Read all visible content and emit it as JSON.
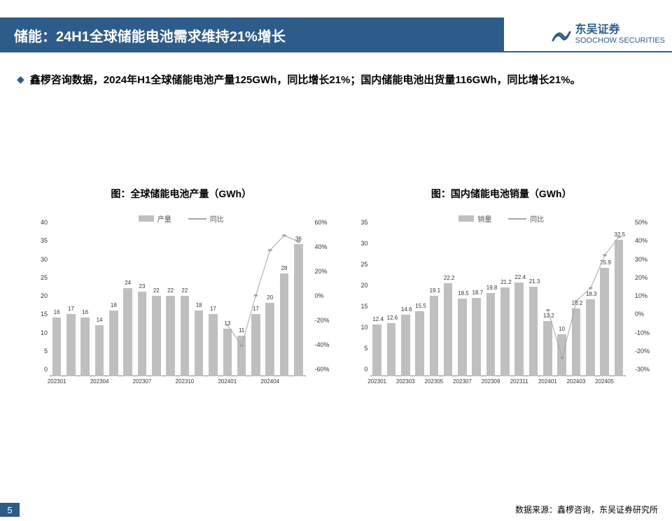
{
  "header": {
    "title": "储能：24H1全球储能电池需求维持21%增长"
  },
  "logo": {
    "cn": "东吴证券",
    "en": "SOOCHOW SECURITIES"
  },
  "bullet": "鑫椤咨询数据，2024年H1全球储能电池产量125GWh，同比增长21%；国内储能电池出货量116GWh，同比增长21%。",
  "chart1": {
    "title": "图：全球储能电池产量（GWh）",
    "legend_bar": "产量",
    "legend_line": "同比",
    "y_left": {
      "min": 0,
      "max": 40,
      "step": 5
    },
    "y_right": {
      "min": -60,
      "max": 60,
      "step": 20,
      "suffix": "%"
    },
    "x_labels": [
      "202301",
      "202304",
      "202307",
      "202310",
      "202401",
      "202404"
    ],
    "x_label_idx": [
      0,
      3,
      6,
      9,
      12,
      15
    ],
    "bars": [
      16,
      17,
      16,
      14,
      18,
      24,
      23,
      22,
      22,
      22,
      18,
      17,
      13,
      11,
      17,
      20,
      28,
      36
    ],
    "line": [
      null,
      null,
      null,
      null,
      null,
      null,
      null,
      null,
      null,
      null,
      null,
      null,
      -18,
      -35,
      6,
      43,
      55,
      50
    ],
    "bar_color": "#bfbfbf",
    "line_color": "#a6a6a6",
    "bar_width": 0.62
  },
  "chart2": {
    "title": "图：国内储能电池销量（GWh）",
    "legend_bar": "销量",
    "legend_line": "同比",
    "y_left": {
      "min": 0,
      "max": 35,
      "step": 5
    },
    "y_right": {
      "min": -30,
      "max": 50,
      "step": 10,
      "suffix": "%"
    },
    "x_labels": [
      "202301",
      "202303",
      "202305",
      "202307",
      "202309",
      "202311",
      "202401",
      "202403",
      "202405"
    ],
    "x_label_idx": [
      0,
      2,
      4,
      6,
      8,
      10,
      12,
      14,
      16
    ],
    "bars": [
      12.4,
      12.6,
      14.6,
      15.5,
      19.1,
      22.2,
      18.5,
      18.7,
      19.8,
      21.2,
      22.4,
      21.3,
      13.2,
      10.0,
      16.2,
      18.3,
      25.9,
      32.5
    ],
    "line": [
      null,
      null,
      null,
      null,
      null,
      null,
      null,
      null,
      null,
      null,
      null,
      null,
      6,
      -20,
      11,
      18,
      36,
      46
    ],
    "bar_color": "#bfbfbf",
    "line_color": "#a6a6a6",
    "bar_width": 0.62
  },
  "footer": "数据来源：鑫椤咨询，东吴证券研究所",
  "page": "5"
}
